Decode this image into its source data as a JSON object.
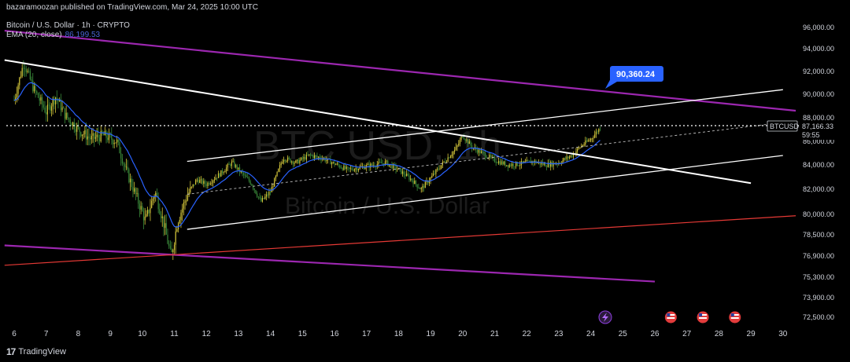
{
  "publisher": "bazaramoozan published on TradingView.com, Mar 24, 2025 10:00 UTC",
  "symbol_line": "Bitcoin / U.S. Dollar · 1h · CRYPTO",
  "ema_label": "EMA (20, close)",
  "ema_value": "86,199.53",
  "watermark_ticker": "BTC USD, 1h",
  "watermark_name": "Bitcoin / U.S. Dollar",
  "footer_brand": "TradingView",
  "footer_logo": "17",
  "callout": "90,360.24",
  "last_price_label": "BTCUSD",
  "last_price": "87,166.33",
  "countdown": "59:55",
  "colors": {
    "background": "#000000",
    "bull": "#d4c63a",
    "bear": "#3a8a3a",
    "ema": "#2962ff",
    "channel": "#ffffff",
    "purple": "#9c27b0",
    "red": "#e53935",
    "callout": "#2962ff"
  },
  "chart_data": {
    "type": "candlestick",
    "y_ticks": [
      "96,000.00",
      "94,000.00",
      "92,000.00",
      "90,000.00",
      "88,000.00",
      "86,000.00",
      "84,000.00",
      "82,000.00",
      "80,000.00",
      "78,500.00",
      "76,900.00",
      "75,300.00",
      "73,900.00",
      "72,500.00"
    ],
    "x_ticks": [
      "6",
      "7",
      "8",
      "9",
      "10",
      "11",
      "12",
      "13",
      "14",
      "15",
      "16",
      "17",
      "18",
      "19",
      "20",
      "21",
      "22",
      "23",
      "24",
      "25",
      "26",
      "27",
      "28",
      "29",
      "30"
    ],
    "ylim": [
      72000,
      97000
    ],
    "xlim_days": [
      5.7,
      30.5
    ],
    "price_path": [
      [
        6.0,
        89500
      ],
      [
        6.3,
        92800
      ],
      [
        6.6,
        90500
      ],
      [
        7.0,
        88500
      ],
      [
        7.3,
        89800
      ],
      [
        7.6,
        88200
      ],
      [
        8.0,
        87000
      ],
      [
        8.4,
        86200
      ],
      [
        8.8,
        86500
      ],
      [
        9.2,
        86000
      ],
      [
        9.5,
        83500
      ],
      [
        9.8,
        81500
      ],
      [
        10.1,
        79500
      ],
      [
        10.4,
        81800
      ],
      [
        10.7,
        79000
      ],
      [
        10.9,
        76800
      ],
      [
        11.1,
        79500
      ],
      [
        11.4,
        81500
      ],
      [
        11.7,
        82800
      ],
      [
        12.0,
        82400
      ],
      [
        12.4,
        83200
      ],
      [
        12.8,
        84200
      ],
      [
        13.0,
        83600
      ],
      [
        13.4,
        82500
      ],
      [
        13.7,
        81000
      ],
      [
        14.0,
        81800
      ],
      [
        14.4,
        84600
      ],
      [
        14.8,
        84200
      ],
      [
        15.2,
        84800
      ],
      [
        15.6,
        84600
      ],
      [
        16.0,
        84100
      ],
      [
        16.4,
        83600
      ],
      [
        16.8,
        83800
      ],
      [
        17.2,
        84000
      ],
      [
        17.6,
        84200
      ],
      [
        18.0,
        83600
      ],
      [
        18.4,
        82800
      ],
      [
        18.7,
        82000
      ],
      [
        19.0,
        82900
      ],
      [
        19.4,
        84200
      ],
      [
        19.8,
        85400
      ],
      [
        20.0,
        86500
      ],
      [
        20.3,
        85500
      ],
      [
        20.6,
        85000
      ],
      [
        21.0,
        84400
      ],
      [
        21.4,
        84000
      ],
      [
        21.8,
        84100
      ],
      [
        22.2,
        84300
      ],
      [
        22.6,
        84000
      ],
      [
        23.0,
        84200
      ],
      [
        23.4,
        84800
      ],
      [
        23.7,
        85600
      ],
      [
        24.0,
        86200
      ],
      [
        24.3,
        87166
      ]
    ],
    "ema_series": "EMA (20, close)",
    "annotations": [
      "90,360.24"
    ],
    "last_price": 87166.33
  }
}
